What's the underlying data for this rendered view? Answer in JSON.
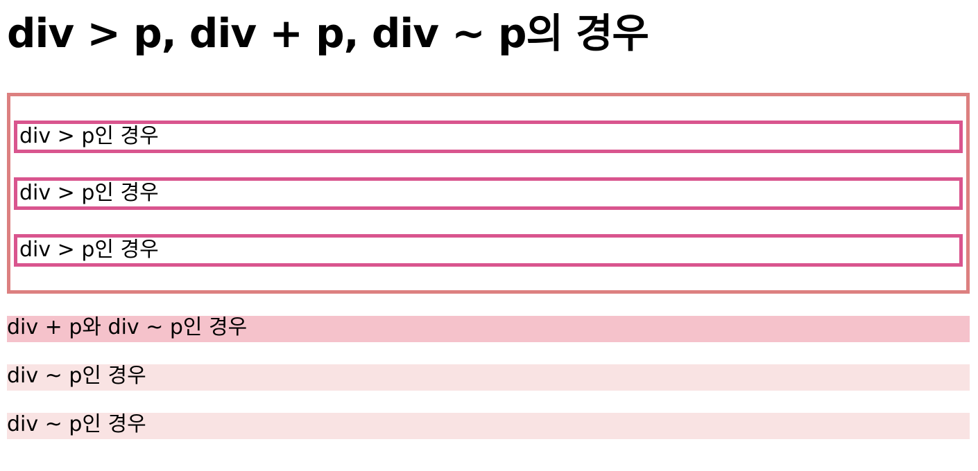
{
  "heading": "div > p, div + p, div ~ p의 경우",
  "div_children": [
    {
      "text": "div > p인 경우"
    },
    {
      "text": "div > p인 경우"
    },
    {
      "text": "div > p인 경우"
    }
  ],
  "siblings": [
    {
      "text": "div + p와 div ~ p인 경우",
      "bg": "#f5c2cb"
    },
    {
      "text": "div ~ p인 경우",
      "bg": "#f9e3e3"
    },
    {
      "text": "div ~ p인 경우",
      "bg": "#f9e3e3"
    }
  ],
  "colors": {
    "outer_border": "#dc8080",
    "child_border": "#d9558e"
  }
}
